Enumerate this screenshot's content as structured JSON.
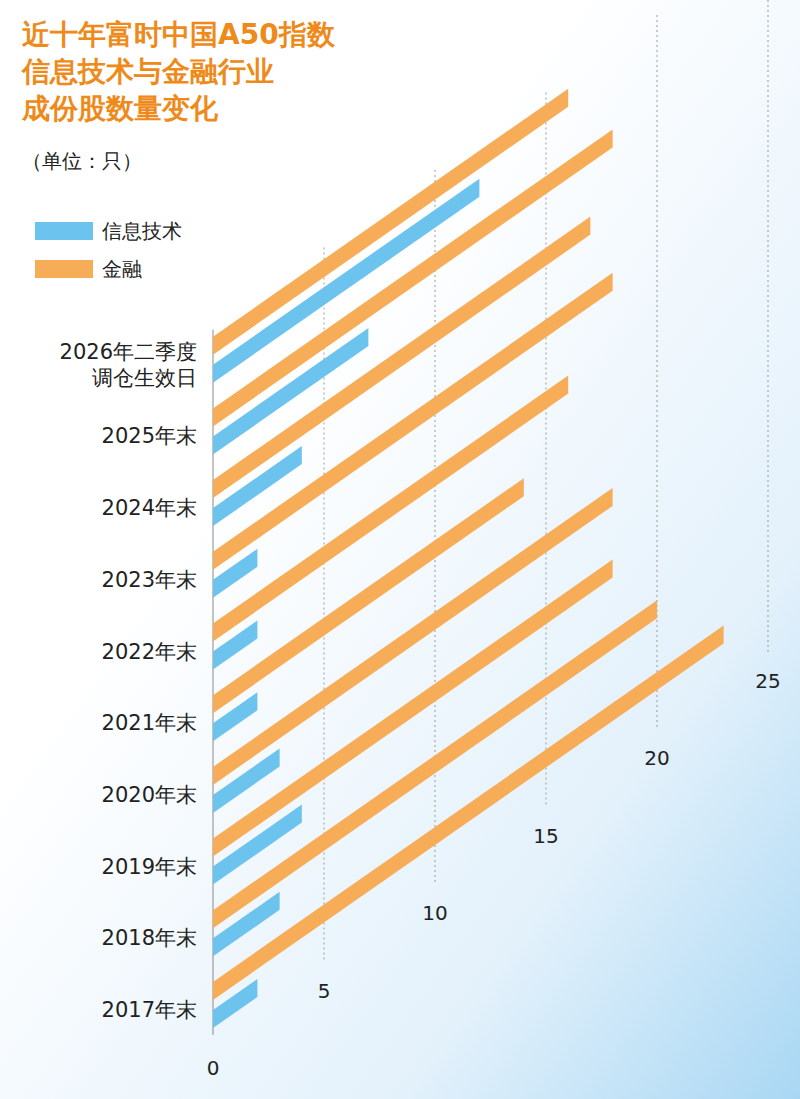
{
  "chart_data": {
    "type": "bar",
    "orientation": "horizontal",
    "title": [
      "近十年富时中国A50指数",
      "信息技术与金融行业",
      "成份股数量变化"
    ],
    "subtitle": "（单位：只）",
    "categories": [
      "2017年末",
      "2018年末",
      "2019年末",
      "2020年末",
      "2021年末",
      "2022年末",
      "2023年末",
      "2024年末",
      "2025年末",
      "2026年二季度调仓生效日"
    ],
    "series": [
      {
        "name": "信息技术",
        "color": "#6cc3ee",
        "values": [
          2,
          3,
          4,
          3,
          2,
          2,
          2,
          4,
          7,
          12
        ]
      },
      {
        "name": "金融",
        "color": "#f7ac58",
        "values": [
          23,
          20,
          18,
          18,
          14,
          16,
          18,
          17,
          18,
          16
        ]
      }
    ],
    "xlim": [
      0,
      25
    ],
    "xticks": [
      0,
      5,
      10,
      15,
      20,
      25
    ],
    "grid": true,
    "legend": "top-left"
  }
}
